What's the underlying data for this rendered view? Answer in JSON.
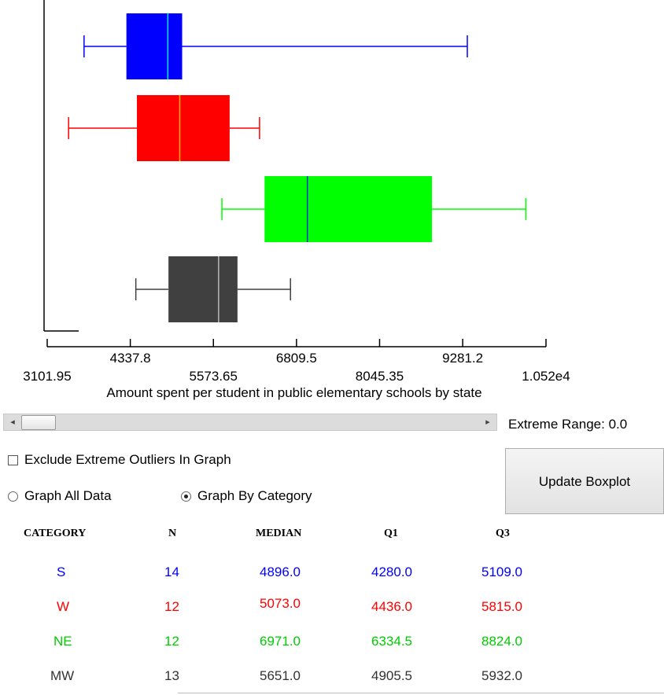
{
  "chart_data": {
    "type": "boxplot",
    "xlabel": "Amount spent per student in public elementary schools by state",
    "xlim": [
      3101.95,
      10520
    ],
    "ticks_major": [
      "3101.95",
      "5573.65",
      "8045.35",
      "1.052e4"
    ],
    "ticks_minor": [
      "4337.8",
      "6809.5",
      "9281.2"
    ],
    "tick_values_major": [
      3101.95,
      5573.65,
      8045.35,
      10520
    ],
    "tick_values_minor": [
      4337.8,
      6809.5,
      9281.2
    ],
    "series": [
      {
        "name": "S",
        "whisker_low": 3650,
        "q1": 4280,
        "median": 4896,
        "q3": 5109,
        "whisker_high": 9350,
        "color": "#0000ff",
        "median_color": "#00e5e5"
      },
      {
        "name": "W",
        "whisker_low": 3420,
        "q1": 4436,
        "median": 5073,
        "q3": 5815,
        "whisker_high": 6260,
        "color": "#ff0000",
        "median_color": "#ffb000"
      },
      {
        "name": "NE",
        "whisker_low": 5700,
        "q1": 6334.5,
        "median": 6971,
        "q3": 8824,
        "whisker_high": 10220,
        "color": "#00ff00",
        "median_color": "#0033cc"
      },
      {
        "name": "MW",
        "whisker_low": 4420,
        "q1": 4905.5,
        "median": 5651,
        "q3": 5932,
        "whisker_high": 6720,
        "color": "#404040",
        "median_color": "#bbbbbb"
      }
    ]
  },
  "controls": {
    "extreme_range_label": "Extreme Range:",
    "extreme_range_value": "0.0",
    "exclude_outliers_label": "Exclude Extreme Outliers In Graph",
    "radio_all_label": "Graph All Data",
    "radio_category_label": "Graph By Category",
    "update_button_label": "Update Boxplot",
    "scroll_left_glyph": "◂",
    "scroll_right_glyph": "▸"
  },
  "table": {
    "headers": [
      "CATEGORY",
      "N",
      "MEDIAN",
      "Q1",
      "Q3"
    ],
    "rows": [
      {
        "category": "S",
        "n": "14",
        "median": "4896.0",
        "q1": "4280.0",
        "q3": "5109.0",
        "color": "#0000ff"
      },
      {
        "category": "W",
        "n": "12",
        "median": "5073.0",
        "q1": "4436.0",
        "q3": "5815.0",
        "color": "#ff0000"
      },
      {
        "category": "NE",
        "n": "12",
        "median": "6971.0",
        "q1": "6334.5",
        "q3": "8824.0",
        "color": "#00cc00"
      },
      {
        "category": "MW",
        "n": "13",
        "median": "5651.0",
        "q1": "4905.5",
        "q3": "5932.0",
        "color": "#333333"
      }
    ]
  }
}
